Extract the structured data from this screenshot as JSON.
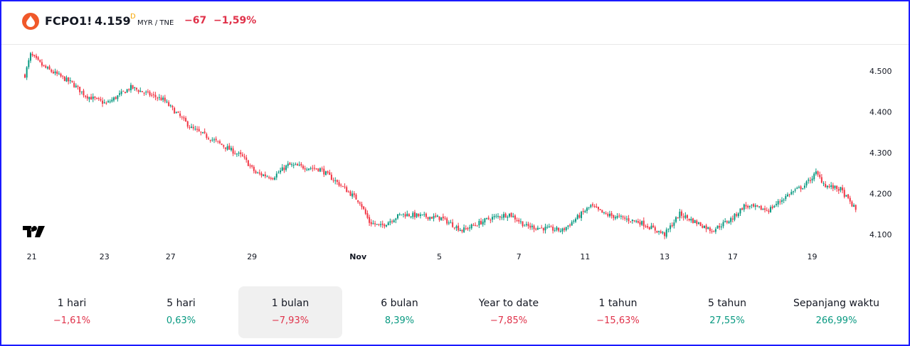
{
  "header": {
    "symbol": "FCPO1!",
    "price": "4.159",
    "flag": "D",
    "unit": "MYR / TNE",
    "change": "−67",
    "change_pct": "−1,59%"
  },
  "colors": {
    "up": "#089981",
    "down": "#F23645",
    "accent": "#f0582a"
  },
  "chart_data": {
    "type": "candlestick",
    "candle_count": 440,
    "ylim": [
      4.07,
      4.58
    ],
    "y_ticks": [
      {
        "v": 4.5,
        "label": "4.500"
      },
      {
        "v": 4.4,
        "label": "4.400"
      },
      {
        "v": 4.3,
        "label": "4.300"
      },
      {
        "v": 4.2,
        "label": "4.200"
      },
      {
        "v": 4.1,
        "label": "4.100"
      }
    ],
    "x_ticks": [
      {
        "i": 1,
        "label": "21"
      },
      {
        "i": 42,
        "label": "23"
      },
      {
        "i": 77,
        "label": "27"
      },
      {
        "i": 120,
        "label": "29"
      },
      {
        "i": 176,
        "label": "Nov"
      },
      {
        "i": 219,
        "label": "5"
      },
      {
        "i": 261,
        "label": "7"
      },
      {
        "i": 296,
        "label": "11"
      },
      {
        "i": 338,
        "label": "13"
      },
      {
        "i": 374,
        "label": "17"
      },
      {
        "i": 416,
        "label": "19"
      }
    ],
    "close_keypoints": [
      [
        0,
        4.49
      ],
      [
        3,
        4.54
      ],
      [
        10,
        4.51
      ],
      [
        25,
        4.47
      ],
      [
        32,
        4.44
      ],
      [
        43,
        4.42
      ],
      [
        56,
        4.46
      ],
      [
        73,
        4.43
      ],
      [
        88,
        4.36
      ],
      [
        100,
        4.33
      ],
      [
        115,
        4.29
      ],
      [
        122,
        4.25
      ],
      [
        131,
        4.24
      ],
      [
        139,
        4.27
      ],
      [
        156,
        4.26
      ],
      [
        167,
        4.22
      ],
      [
        177,
        4.18
      ],
      [
        182,
        4.13
      ],
      [
        188,
        4.12
      ],
      [
        199,
        4.15
      ],
      [
        220,
        4.14
      ],
      [
        231,
        4.11
      ],
      [
        246,
        4.14
      ],
      [
        256,
        4.15
      ],
      [
        265,
        4.12
      ],
      [
        284,
        4.11
      ],
      [
        299,
        4.17
      ],
      [
        306,
        4.15
      ],
      [
        325,
        4.13
      ],
      [
        338,
        4.1
      ],
      [
        346,
        4.15
      ],
      [
        363,
        4.11
      ],
      [
        374,
        4.14
      ],
      [
        380,
        4.17
      ],
      [
        393,
        4.16
      ],
      [
        404,
        4.2
      ],
      [
        412,
        4.22
      ],
      [
        418,
        4.25
      ],
      [
        423,
        4.22
      ],
      [
        431,
        4.21
      ],
      [
        439,
        4.16
      ]
    ]
  },
  "periods": [
    {
      "label": "1 hari",
      "value": "−1,61%",
      "dir": "neg"
    },
    {
      "label": "5 hari",
      "value": "0,63%",
      "dir": "pos"
    },
    {
      "label": "1 bulan",
      "value": "−7,93%",
      "dir": "neg",
      "selected": true
    },
    {
      "label": "6 bulan",
      "value": "8,39%",
      "dir": "pos"
    },
    {
      "label": "Year to date",
      "value": "−7,85%",
      "dir": "neg"
    },
    {
      "label": "1 tahun",
      "value": "−15,63%",
      "dir": "neg"
    },
    {
      "label": "5 tahun",
      "value": "27,55%",
      "dir": "pos"
    },
    {
      "label": "Sepanjang waktu",
      "value": "266,99%",
      "dir": "pos"
    }
  ]
}
